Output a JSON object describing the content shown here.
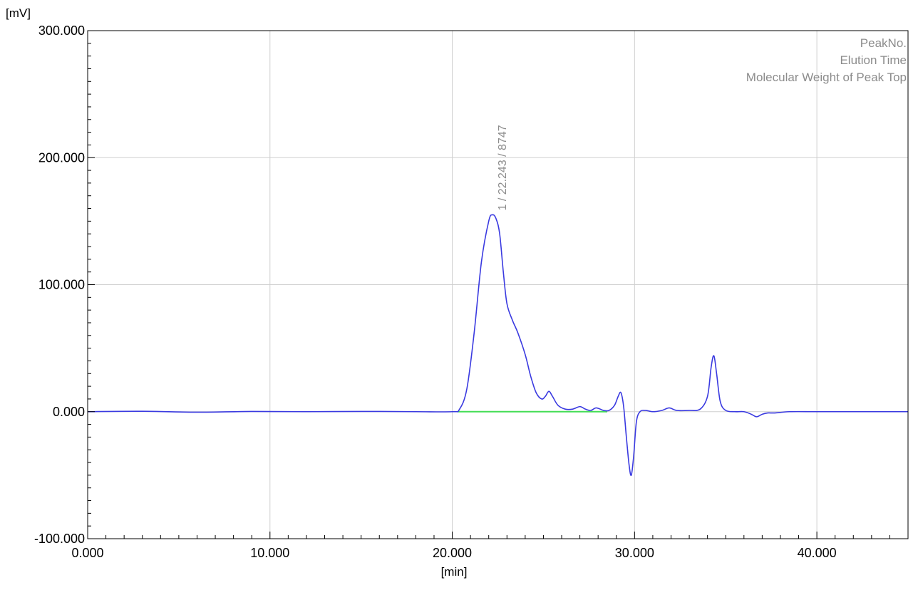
{
  "chart_data": {
    "type": "line",
    "title": "",
    "ylabel": "[mV]",
    "xlabel": "[min]",
    "xlim": [
      0,
      45
    ],
    "ylim": [
      -100,
      300
    ],
    "grid": true,
    "x_ticks": [
      0,
      10,
      20,
      30,
      40
    ],
    "x_tick_labels": [
      "0.000",
      "10.000",
      "20.000",
      "30.000",
      "40.000"
    ],
    "y_ticks": [
      -100,
      0,
      100,
      200,
      300
    ],
    "y_tick_labels": [
      "-100.000",
      "0.000",
      "100.000",
      "200.000",
      "300.000"
    ],
    "legend_position": "top-right",
    "legend": [
      "PeakNo.",
      "Elution Time",
      "Molecular Weight of Peak Top"
    ],
    "annotations": [
      {
        "text": "1 / 22.243 / 8747",
        "x": 22.243,
        "y": 155
      }
    ],
    "colors": {
      "signal": "#3a3ae0",
      "baseline": "#44dd55",
      "grid": "#cfcfcf",
      "label": "#8c8c8c"
    },
    "series": [
      {
        "color": "#3a3ae0",
        "x": [
          0,
          3,
          6,
          9,
          12,
          15,
          18,
          20,
          20.4,
          20.8,
          21.2,
          21.6,
          22.0,
          22.2,
          22.4,
          22.6,
          22.8,
          23.0,
          23.3,
          23.6,
          24.0,
          24.3,
          24.6,
          24.9,
          25.1,
          25.3,
          25.5,
          25.8,
          26.2,
          26.6,
          27.0,
          27.3,
          27.6,
          27.9,
          28.3,
          28.6,
          28.9,
          29.1,
          29.25,
          29.4,
          29.55,
          29.7,
          29.82,
          29.95,
          30.1,
          30.3,
          30.6,
          31.0,
          31.5,
          31.9,
          32.3,
          33.0,
          33.6,
          34.0,
          34.2,
          34.35,
          34.5,
          34.7,
          35.0,
          35.5,
          36.0,
          36.4,
          36.7,
          37.0,
          37.3,
          37.7,
          38.5,
          40,
          42,
          45
        ],
        "y": [
          0,
          0.3,
          -0.4,
          0.2,
          0,
          0.2,
          0,
          0,
          2,
          18,
          62,
          118,
          150,
          155,
          152,
          140,
          110,
          85,
          72,
          62,
          45,
          28,
          15,
          10,
          12,
          16,
          12,
          5,
          2,
          2,
          4,
          2,
          1,
          3,
          1,
          1,
          5,
          12,
          15,
          4,
          -20,
          -42,
          -50,
          -35,
          -8,
          0,
          1,
          0,
          1,
          3,
          1,
          1,
          2,
          12,
          35,
          44,
          30,
          8,
          1,
          0,
          0,
          -2,
          -4,
          -2,
          -1,
          -1,
          0,
          0,
          0,
          0
        ]
      }
    ],
    "baseline": {
      "color": "#44dd55",
      "x": [
        20.3,
        28.5
      ],
      "y": [
        0,
        0
      ]
    }
  }
}
